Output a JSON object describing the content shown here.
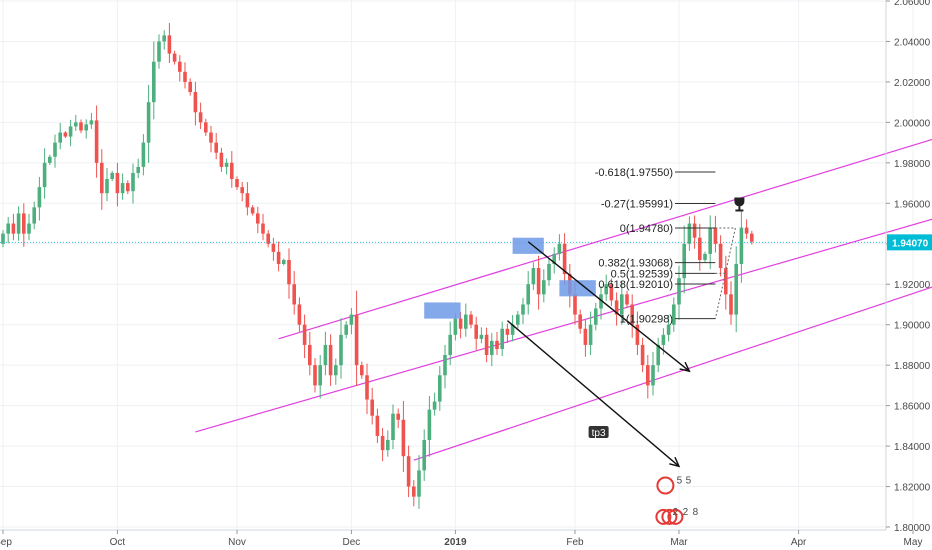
{
  "chart_data": {
    "type": "candlestick",
    "title": "",
    "y_axis": {
      "ylim": [
        1.8,
        2.06
      ],
      "ticks": [
        "2.06000",
        "2.04000",
        "2.02000",
        "2.00000",
        "1.98000",
        "1.96000",
        "1.94000",
        "1.92000",
        "1.90000",
        "1.88000",
        "1.86000",
        "1.84000",
        "1.82000",
        "1.80000"
      ],
      "position": "right"
    },
    "x_axis": {
      "ticks": [
        {
          "label": "Sep",
          "index": 0
        },
        {
          "label": "Oct",
          "index": 22
        },
        {
          "label": "Nov",
          "index": 45
        },
        {
          "label": "Dec",
          "index": 67
        },
        {
          "label": "2019",
          "index": 87,
          "bold": true
        },
        {
          "label": "Feb",
          "index": 110
        },
        {
          "label": "Mar",
          "index": 130
        },
        {
          "label": "Apr",
          "index": 153
        },
        {
          "label": "May",
          "index": 175
        }
      ],
      "total_slots": 192
    },
    "current_price": {
      "value": 1.9407,
      "label": "1.94070",
      "color": "#26c6da"
    },
    "candles": {
      "start": 1.94,
      "closes": [
        1.945,
        1.95,
        1.945,
        1.955,
        1.945,
        1.95,
        1.958,
        1.968,
        1.98,
        1.983,
        1.99,
        1.995,
        1.993,
        1.998,
        2.0,
        1.996,
        1.999,
        2.001,
        1.98,
        1.965,
        1.972,
        1.975,
        1.965,
        1.97,
        1.966,
        1.975,
        1.978,
        1.99,
        2.01,
        2.03,
        2.04,
        2.043,
        2.034,
        2.03,
        2.025,
        2.02,
        2.015,
        2.005,
        2.0,
        1.995,
        1.99,
        1.985,
        1.978,
        1.98,
        1.972,
        1.968,
        1.965,
        1.958,
        1.955,
        1.95,
        1.945,
        1.94,
        1.936,
        1.93,
        1.932,
        1.92,
        1.91,
        1.9,
        1.89,
        1.88,
        1.87,
        1.88,
        1.89,
        1.875,
        1.88,
        1.895,
        1.9,
        1.905,
        1.88,
        1.875,
        1.863,
        1.855,
        1.845,
        1.838,
        1.843,
        1.856,
        1.853,
        1.835,
        1.82,
        1.815,
        1.828,
        1.843,
        1.858,
        1.862,
        1.875,
        1.885,
        1.895,
        1.903,
        1.898,
        1.905,
        1.9,
        1.893,
        1.895,
        1.885,
        1.892,
        1.888,
        1.898,
        1.895,
        1.9,
        1.905,
        1.91,
        1.92,
        1.928,
        1.915,
        1.922,
        1.93,
        1.935,
        1.94,
        1.925,
        1.915,
        1.905,
        1.898,
        1.89,
        1.9,
        1.908,
        1.915,
        1.92,
        1.912,
        1.905,
        1.915,
        1.91,
        1.9,
        1.89,
        1.88,
        1.87,
        1.88,
        1.89,
        1.895,
        1.9,
        1.91,
        1.923,
        1.94,
        1.95,
        1.943,
        1.932,
        1.935,
        1.948,
        1.94,
        1.928,
        1.915,
        1.905,
        1.93,
        1.948,
        1.945,
        1.941
      ]
    },
    "channels": [
      {
        "color": "#e040e0",
        "lines": [
          {
            "from": [
              53,
              1.893
            ],
            "to": [
              192,
              2.002
            ]
          },
          {
            "from": [
              37,
              1.847
            ],
            "to": [
              192,
              1.962
            ]
          },
          {
            "from": [
              79,
              1.833
            ],
            "to": [
              192,
              1.93
            ]
          }
        ]
      }
    ],
    "rectangles": [
      {
        "x0": 98,
        "x1": 104,
        "y0": 1.943,
        "y1": 1.935,
        "color": "#6f9ae8"
      },
      {
        "x0": 81,
        "x1": 88,
        "y0": 1.911,
        "y1": 1.903,
        "color": "#6f9ae8"
      },
      {
        "x0": 107,
        "x1": 114,
        "y0": 1.922,
        "y1": 1.914,
        "color": "#6f9ae8"
      }
    ],
    "arrows": [
      {
        "from": [
          101,
          1.941
        ],
        "to": [
          132,
          1.877
        ]
      },
      {
        "from": [
          97,
          1.902
        ],
        "to": [
          130,
          1.83
        ]
      }
    ],
    "fibonacci": {
      "x0": 130,
      "x1": 137,
      "levels": [
        {
          "label": "-0.618(1.97550)",
          "value": 1.9755
        },
        {
          "label": "-0.27(1.95991)",
          "value": 1.95991
        },
        {
          "label": "0(1.94780)",
          "value": 1.9478
        },
        {
          "label": "0.382(1.93068)",
          "value": 1.93068
        },
        {
          "label": "0.5(1.92539)",
          "value": 1.92539
        },
        {
          "label": "0.618(1.92010)",
          "value": 1.9201
        },
        {
          "label": "1(1.90298)",
          "value": 1.90298
        }
      ]
    },
    "markers": {
      "tp3": "tp3",
      "event_top": [
        "5",
        "5"
      ],
      "event_bottom": [
        "2",
        "2",
        "8"
      ]
    }
  }
}
